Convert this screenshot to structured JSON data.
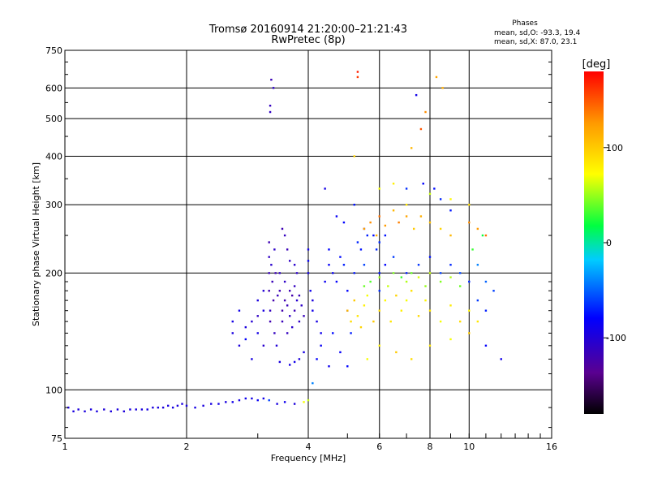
{
  "chart_data": {
    "type": "scatter",
    "title": "Tromsø 20160914 21:20:00–21:21:43",
    "subtitle": "RwPretec (8p)",
    "xlabel": "Frequency [MHz]",
    "ylabel": "Stationary phase Virtual Height [km]",
    "x_scale": "log",
    "y_scale": "log",
    "xlim": [
      1,
      16
    ],
    "ylim": [
      75,
      750
    ],
    "x_ticks": [
      "1",
      "2",
      "4",
      "6",
      "8",
      "10",
      "16"
    ],
    "y_ticks": [
      "75",
      "100",
      "200",
      "300",
      "400",
      "500",
      "600",
      "750"
    ],
    "x_grid": [
      2,
      4,
      6,
      8,
      10
    ],
    "y_grid": [
      100,
      200,
      300,
      400,
      500,
      600
    ],
    "phases_box": {
      "title": "Phases",
      "line1": "mean, sd,O: -93.3, 19.4",
      "line2": "mean, sd,X:  87.0, 23.1"
    },
    "colorbar": {
      "label": "[deg]",
      "range": [
        -180,
        180
      ],
      "tick_labels": [
        "100",
        "0",
        "-100"
      ],
      "tick_values": [
        100,
        0,
        -100
      ]
    },
    "series": [
      {
        "points": [
          [
            1.02,
            90,
            -96
          ],
          [
            1.05,
            88,
            -95
          ],
          [
            1.08,
            89,
            -98
          ],
          [
            1.12,
            88,
            -97
          ],
          [
            1.16,
            89,
            -96
          ],
          [
            1.2,
            88,
            -95
          ],
          [
            1.25,
            89,
            -99
          ],
          [
            1.3,
            88,
            -97
          ],
          [
            1.35,
            89,
            -96
          ],
          [
            1.4,
            88,
            -98
          ],
          [
            1.45,
            89,
            -95
          ],
          [
            1.5,
            89,
            -97
          ],
          [
            1.55,
            89,
            -96
          ],
          [
            1.6,
            89,
            -94
          ],
          [
            1.65,
            90,
            -97
          ],
          [
            1.7,
            90,
            -95
          ],
          [
            1.75,
            90,
            -98
          ],
          [
            1.8,
            91,
            -96
          ],
          [
            1.85,
            90,
            -94
          ],
          [
            1.9,
            91,
            -97
          ],
          [
            1.95,
            92,
            -96
          ],
          [
            2.0,
            91,
            -95
          ],
          [
            2.1,
            90,
            -93
          ],
          [
            2.2,
            91,
            -96
          ],
          [
            2.3,
            92,
            -94
          ],
          [
            2.4,
            92,
            -92
          ],
          [
            2.5,
            93,
            -95
          ],
          [
            2.6,
            93,
            -90
          ],
          [
            2.7,
            94,
            -93
          ],
          [
            2.8,
            95,
            -88
          ],
          [
            2.9,
            95,
            -92
          ],
          [
            3.0,
            94,
            -85
          ],
          [
            3.1,
            95,
            -90
          ],
          [
            3.2,
            94,
            -60
          ],
          [
            3.35,
            92,
            -95
          ],
          [
            3.5,
            93,
            -88
          ],
          [
            3.7,
            92,
            -98
          ],
          [
            3.9,
            93,
            70
          ],
          [
            4.0,
            94,
            60
          ],
          [
            4.1,
            104,
            -40
          ],
          [
            2.6,
            140,
            -95
          ],
          [
            2.6,
            150,
            -92
          ],
          [
            2.7,
            130,
            -98
          ],
          [
            2.7,
            160,
            -90
          ],
          [
            2.8,
            145,
            -96
          ],
          [
            2.8,
            135,
            -80
          ],
          [
            2.9,
            120,
            -94
          ],
          [
            2.9,
            150,
            -102
          ],
          [
            3.0,
            170,
            -96
          ],
          [
            3.0,
            140,
            -92
          ],
          [
            3.0,
            155,
            -110
          ],
          [
            3.1,
            180,
            -100
          ],
          [
            3.1,
            160,
            -95
          ],
          [
            3.1,
            130,
            -105
          ],
          [
            3.2,
            180,
            -120
          ],
          [
            3.2,
            200,
            -115
          ],
          [
            3.2,
            220,
            -110
          ],
          [
            3.2,
            240,
            -118
          ],
          [
            3.22,
            160,
            -112
          ],
          [
            3.22,
            150,
            -120
          ],
          [
            3.24,
            210,
            -105
          ],
          [
            3.26,
            190,
            -116
          ],
          [
            3.28,
            170,
            -122
          ],
          [
            3.3,
            230,
            -108
          ],
          [
            3.3,
            140,
            -112
          ],
          [
            3.32,
            200,
            -118
          ],
          [
            3.34,
            130,
            -100
          ],
          [
            3.36,
            175,
            -115
          ],
          [
            3.4,
            200,
            -110
          ],
          [
            3.4,
            180,
            -118
          ],
          [
            3.45,
            160,
            -122
          ],
          [
            3.45,
            150,
            -115
          ],
          [
            3.5,
            190,
            -108
          ],
          [
            3.5,
            170,
            -120
          ],
          [
            3.55,
            165,
            -116
          ],
          [
            3.55,
            140,
            -112
          ],
          [
            3.6,
            180,
            -118
          ],
          [
            3.6,
            155,
            -110
          ],
          [
            3.65,
            175,
            -122
          ],
          [
            3.65,
            145,
            -106
          ],
          [
            3.7,
            160,
            -118
          ],
          [
            3.7,
            185,
            -112
          ],
          [
            3.75,
            170,
            -104
          ],
          [
            3.8,
            150,
            -110
          ],
          [
            3.8,
            175,
            -116
          ],
          [
            3.85,
            165,
            -108
          ],
          [
            3.9,
            155,
            -114
          ],
          [
            3.45,
            260,
            -118
          ],
          [
            3.5,
            250,
            -112
          ],
          [
            3.55,
            230,
            -116
          ],
          [
            3.6,
            215,
            -110
          ],
          [
            3.7,
            210,
            -104
          ],
          [
            3.75,
            200,
            -108
          ],
          [
            3.4,
            118,
            -96
          ],
          [
            3.6,
            116,
            -94
          ],
          [
            3.7,
            118,
            -90
          ],
          [
            3.8,
            120,
            -98
          ],
          [
            3.9,
            125,
            -94
          ],
          [
            3.22,
            520,
            -110
          ],
          [
            3.22,
            540,
            -112
          ],
          [
            3.24,
            630,
            -116
          ],
          [
            3.28,
            600,
            -108
          ],
          [
            4.0,
            230,
            -90
          ],
          [
            4.0,
            215,
            -85
          ],
          [
            4.0,
            200,
            -92
          ],
          [
            4.05,
            180,
            -88
          ],
          [
            4.1,
            170,
            -96
          ],
          [
            4.1,
            160,
            -90
          ],
          [
            4.2,
            150,
            -94
          ],
          [
            4.3,
            140,
            -88
          ],
          [
            4.4,
            190,
            -86
          ],
          [
            4.5,
            210,
            -82
          ],
          [
            4.5,
            230,
            -78
          ],
          [
            4.6,
            200,
            -84
          ],
          [
            4.7,
            190,
            -80
          ],
          [
            4.8,
            220,
            -76
          ],
          [
            4.9,
            210,
            -70
          ],
          [
            5.0,
            180,
            -78
          ],
          [
            5.0,
            160,
            -82
          ],
          [
            5.2,
            200,
            -72
          ],
          [
            5.3,
            240,
            -68
          ],
          [
            5.4,
            230,
            -74
          ],
          [
            5.5,
            210,
            -60
          ],
          [
            5.6,
            250,
            -70
          ],
          [
            5.8,
            250,
            -76
          ],
          [
            5.9,
            230,
            -68
          ],
          [
            6.0,
            200,
            -72
          ],
          [
            6.0,
            180,
            -66
          ],
          [
            6.2,
            210,
            -78
          ],
          [
            4.2,
            120,
            -80
          ],
          [
            4.3,
            130,
            -84
          ],
          [
            4.5,
            115,
            -88
          ],
          [
            4.6,
            140,
            -76
          ],
          [
            4.8,
            125,
            -82
          ],
          [
            5.0,
            115,
            -78
          ],
          [
            5.1,
            140,
            -70
          ],
          [
            4.4,
            330,
            -92
          ],
          [
            4.7,
            280,
            -84
          ],
          [
            4.9,
            270,
            -78
          ],
          [
            5.2,
            300,
            -74
          ],
          [
            5.5,
            260,
            -80
          ],
          [
            6.0,
            240,
            -66
          ],
          [
            6.2,
            250,
            -74
          ],
          [
            6.5,
            220,
            -62
          ],
          [
            7.0,
            200,
            -70
          ],
          [
            7.5,
            210,
            -64
          ],
          [
            8.0,
            220,
            -74
          ],
          [
            8.5,
            200,
            -60
          ],
          [
            9.0,
            210,
            -68
          ],
          [
            9.5,
            200,
            -58
          ],
          [
            10.0,
            190,
            -66
          ],
          [
            10.5,
            170,
            -62
          ],
          [
            11.0,
            160,
            -70
          ],
          [
            7.7,
            340,
            -80
          ],
          [
            8.2,
            330,
            -76
          ],
          [
            8.5,
            310,
            -68
          ],
          [
            9.0,
            290,
            -72
          ],
          [
            7.0,
            330,
            -66
          ],
          [
            5.3,
            640,
            160
          ],
          [
            5.3,
            660,
            170
          ],
          [
            7.4,
            575,
            -90
          ],
          [
            8.3,
            640,
            120
          ],
          [
            5.0,
            160,
            110
          ],
          [
            5.1,
            150,
            90
          ],
          [
            5.2,
            170,
            100
          ],
          [
            5.3,
            155,
            85
          ],
          [
            5.4,
            145,
            95
          ],
          [
            5.5,
            165,
            80
          ],
          [
            5.6,
            175,
            70
          ],
          [
            5.8,
            150,
            100
          ],
          [
            6.0,
            160,
            90
          ],
          [
            6.2,
            170,
            75
          ],
          [
            6.4,
            150,
            85
          ],
          [
            6.6,
            175,
            95
          ],
          [
            6.8,
            160,
            80
          ],
          [
            7.0,
            170,
            70
          ],
          [
            7.2,
            180,
            88
          ],
          [
            7.5,
            155,
            92
          ],
          [
            7.8,
            170,
            76
          ],
          [
            8.0,
            160,
            86
          ],
          [
            8.5,
            150,
            70
          ],
          [
            9.0,
            165,
            82
          ],
          [
            9.5,
            150,
            90
          ],
          [
            10.0,
            160,
            76
          ],
          [
            10.5,
            150,
            84
          ],
          [
            5.5,
            185,
            40
          ],
          [
            5.7,
            190,
            35
          ],
          [
            6.0,
            195,
            50
          ],
          [
            6.3,
            185,
            60
          ],
          [
            6.5,
            200,
            45
          ],
          [
            6.8,
            195,
            30
          ],
          [
            7.0,
            190,
            55
          ],
          [
            7.2,
            200,
            40
          ],
          [
            7.5,
            195,
            65
          ],
          [
            7.8,
            185,
            50
          ],
          [
            8.0,
            200,
            60
          ],
          [
            8.5,
            190,
            45
          ],
          [
            9.0,
            195,
            55
          ],
          [
            9.5,
            185,
            40
          ],
          [
            5.5,
            260,
            120
          ],
          [
            5.7,
            270,
            130
          ],
          [
            5.9,
            250,
            115
          ],
          [
            6.0,
            280,
            140
          ],
          [
            6.2,
            265,
            125
          ],
          [
            6.5,
            290,
            110
          ],
          [
            6.7,
            270,
            135
          ],
          [
            7.0,
            280,
            120
          ],
          [
            7.3,
            260,
            100
          ],
          [
            7.6,
            280,
            115
          ],
          [
            8.0,
            270,
            105
          ],
          [
            8.5,
            260,
            95
          ],
          [
            9.0,
            250,
            110
          ],
          [
            10.0,
            270,
            130
          ],
          [
            10.5,
            260,
            125
          ],
          [
            11.0,
            250,
            140
          ],
          [
            7.2,
            420,
            110
          ],
          [
            7.8,
            520,
            130
          ],
          [
            7.6,
            470,
            150
          ],
          [
            8.6,
            600,
            115
          ],
          [
            5.2,
            400,
            95
          ],
          [
            6.0,
            330,
            70
          ],
          [
            6.5,
            340,
            80
          ],
          [
            7.0,
            300,
            85
          ],
          [
            8.0,
            320,
            60
          ],
          [
            9.0,
            310,
            75
          ],
          [
            10.0,
            300,
            90
          ],
          [
            5.6,
            120,
            70
          ],
          [
            6.0,
            130,
            80
          ],
          [
            6.6,
            125,
            100
          ],
          [
            7.2,
            120,
            90
          ],
          [
            8.0,
            130,
            85
          ],
          [
            9.0,
            135,
            70
          ],
          [
            10.0,
            140,
            100
          ],
          [
            11.0,
            130,
            -80
          ],
          [
            12.0,
            120,
            -90
          ],
          [
            10.5,
            210,
            -40
          ],
          [
            11.0,
            190,
            -50
          ],
          [
            11.5,
            180,
            -60
          ],
          [
            10.2,
            230,
            30
          ],
          [
            10.8,
            250,
            20
          ]
        ]
      }
    ]
  }
}
